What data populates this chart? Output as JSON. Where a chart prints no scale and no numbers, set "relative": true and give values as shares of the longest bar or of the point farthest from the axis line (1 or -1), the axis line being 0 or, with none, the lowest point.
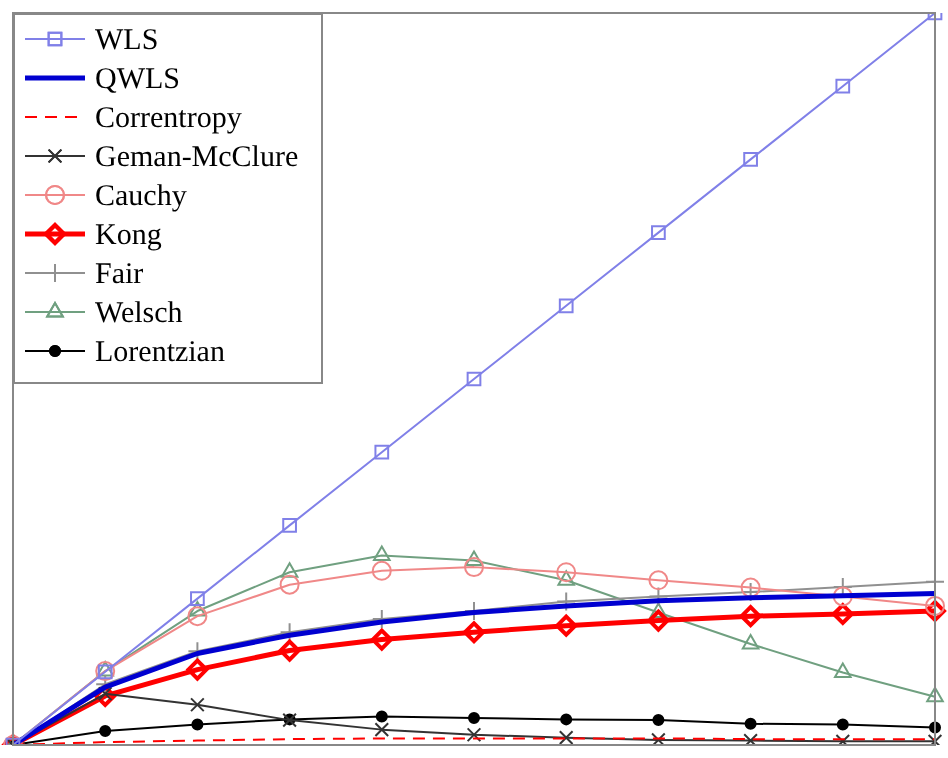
{
  "chart_data": {
    "type": "line",
    "relative": true,
    "legend": "top left",
    "categories": [
      null,
      null,
      null,
      null,
      null,
      null,
      null,
      null,
      null,
      null,
      null
    ],
    "series": [
      {
        "name": "WLS",
        "color": "#8080e8",
        "marker": "square",
        "values": [
          0,
          0.1,
          0.2,
          0.3,
          0.4,
          0.5,
          0.6,
          0.7,
          0.8,
          0.9,
          1
        ]
      },
      {
        "name": "QWLS",
        "color": "#0000d0",
        "marker": "none",
        "values": [
          0,
          0.079,
          0.125,
          0.15,
          0.168,
          0.181,
          0.19,
          0.197,
          0.201,
          0.204,
          0.207
        ]
      },
      {
        "name": "Correntropy",
        "color": "#ff0000",
        "marker": "none",
        "line_style": "dashed",
        "values": [
          0,
          0.004,
          0.006,
          0.008,
          0.009,
          0.009,
          0.009,
          0.009,
          0.008,
          0.008,
          0.008
        ]
      },
      {
        "name": "Geman-McClure",
        "color": "#333333",
        "marker": "cross",
        "values": [
          0,
          0.07,
          0.055,
          0.034,
          0.021,
          0.014,
          0.01,
          0.007,
          0.006,
          0.005,
          0.005
        ]
      },
      {
        "name": "Cauchy",
        "color": "#f08888",
        "marker": "circle",
        "values": [
          0,
          0.101,
          0.176,
          0.219,
          0.238,
          0.243,
          0.236,
          0.225,
          0.215,
          0.203,
          0.19
        ]
      },
      {
        "name": "Kong",
        "color": "#ff0000",
        "marker": "diamond",
        "values": [
          0,
          0.067,
          0.103,
          0.129,
          0.144,
          0.154,
          0.163,
          0.17,
          0.176,
          0.179,
          0.183
        ]
      },
      {
        "name": "Fair",
        "color": "#909090",
        "marker": "plus",
        "values": [
          0,
          0.083,
          0.128,
          0.154,
          0.172,
          0.183,
          0.196,
          0.203,
          0.209,
          0.216,
          0.223
        ]
      },
      {
        "name": "Welsch",
        "color": "#70a080",
        "marker": "triangle",
        "values": [
          0,
          0.101,
          0.183,
          0.236,
          0.259,
          0.252,
          0.225,
          0.181,
          0.138,
          0.099,
          0.066
        ]
      },
      {
        "name": "Lorentzian",
        "color": "#000000",
        "marker": "dot",
        "values": [
          0,
          0.019,
          0.028,
          0.035,
          0.039,
          0.037,
          0.035,
          0.034,
          0.029,
          0.028,
          0.024
        ]
      }
    ]
  }
}
